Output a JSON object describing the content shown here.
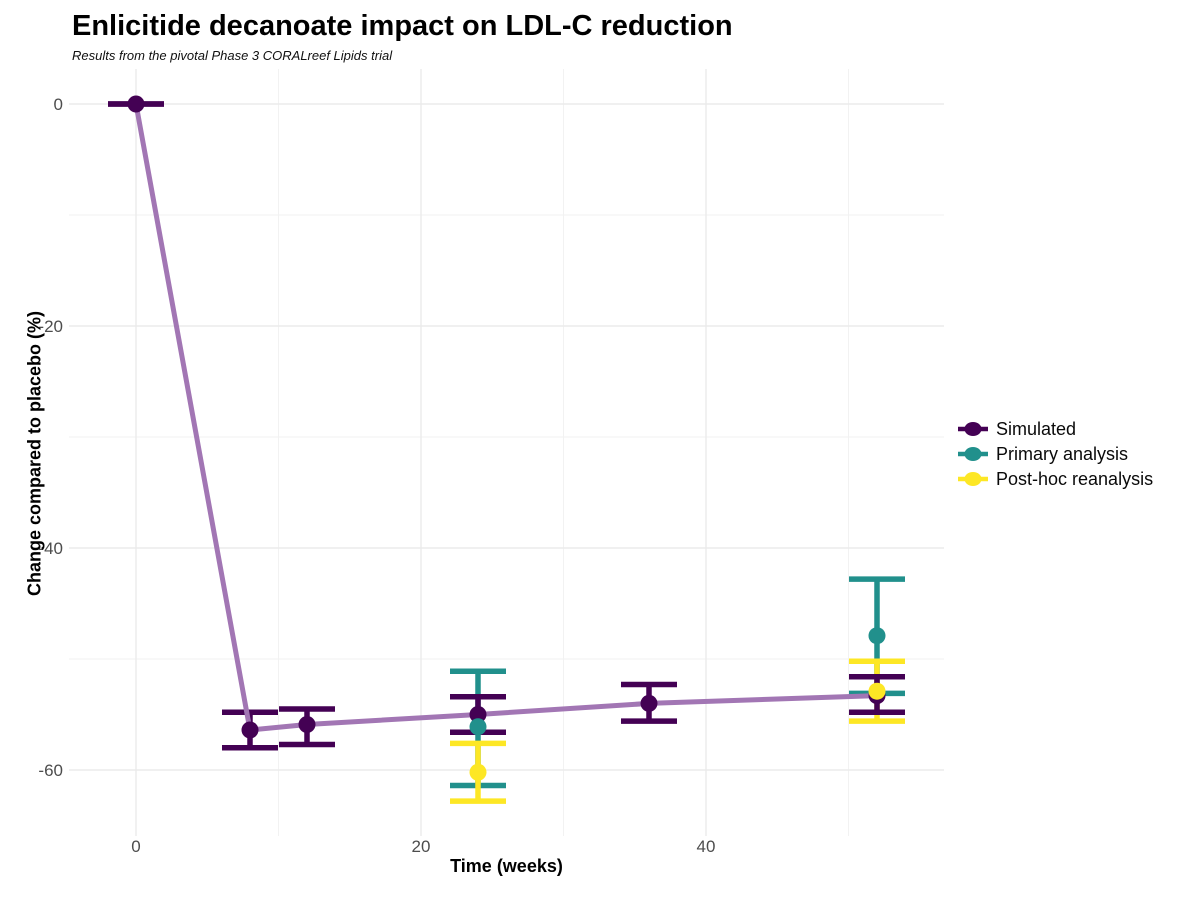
{
  "title": "Enlicitide decanoate impact on LDL-C reduction",
  "subtitle": "Results from the pivotal Phase 3 CORALreef Lipids trial",
  "colors": {
    "simulated": "#440154",
    "primary": "#21908C",
    "posthoc": "#FDE725",
    "trend_line": "#A276B4",
    "grid_major": "#EBEBEB",
    "grid_minor": "#F1F1F1",
    "tick_label": "#4D4D4D"
  },
  "chart_data": {
    "type": "line",
    "subtype": "pointrange-with-errorbars",
    "title": "Enlicitide decanoate impact on LDL-C reduction",
    "subtitle": "Results from the pivotal Phase 3 CORALreef Lipids trial",
    "xlabel": "Time (weeks)",
    "ylabel": "Change compared to placebo (%)",
    "x_axis": {
      "ticks": [
        0,
        20,
        40
      ],
      "minor_ticks": [
        10,
        30,
        50
      ],
      "range": [
        -5,
        56.5
      ]
    },
    "y_axis": {
      "ticks": [
        0,
        -20,
        -40,
        -60
      ],
      "minor_ticks": [
        -10,
        -30,
        -50
      ],
      "range": [
        3,
        -66
      ]
    },
    "grid": true,
    "legend_position": "right",
    "series": [
      {
        "name": "Simulated",
        "color": "#440154",
        "connected": true,
        "line_color": "#A276B4",
        "points": [
          {
            "x": 0,
            "y": 0,
            "lo": 0,
            "hi": 0
          },
          {
            "x": 8,
            "y": -56.4,
            "lo": -58.0,
            "hi": -54.8
          },
          {
            "x": 12,
            "y": -55.9,
            "lo": -57.7,
            "hi": -54.5
          },
          {
            "x": 24,
            "y": -55.0,
            "lo": -56.6,
            "hi": -53.4
          },
          {
            "x": 36,
            "y": -54.0,
            "lo": -55.6,
            "hi": -52.3
          },
          {
            "x": 52,
            "y": -53.3,
            "lo": -54.8,
            "hi": -51.6
          }
        ]
      },
      {
        "name": "Primary analysis",
        "color": "#21908C",
        "connected": false,
        "points": [
          {
            "x": 24,
            "y": -56.1,
            "lo": -61.4,
            "hi": -51.1
          },
          {
            "x": 52,
            "y": -47.9,
            "lo": -53.1,
            "hi": -42.8
          }
        ]
      },
      {
        "name": "Post-hoc reanalysis",
        "color": "#FDE725",
        "connected": false,
        "points": [
          {
            "x": 24,
            "y": -60.2,
            "lo": -62.8,
            "hi": -57.6
          },
          {
            "x": 52,
            "y": -52.9,
            "lo": -55.6,
            "hi": -50.2
          }
        ]
      }
    ]
  },
  "legend": {
    "items": [
      {
        "label": "Simulated",
        "color": "#440154"
      },
      {
        "label": "Primary analysis",
        "color": "#21908C"
      },
      {
        "label": "Post-hoc reanalysis",
        "color": "#FDE725"
      }
    ]
  }
}
